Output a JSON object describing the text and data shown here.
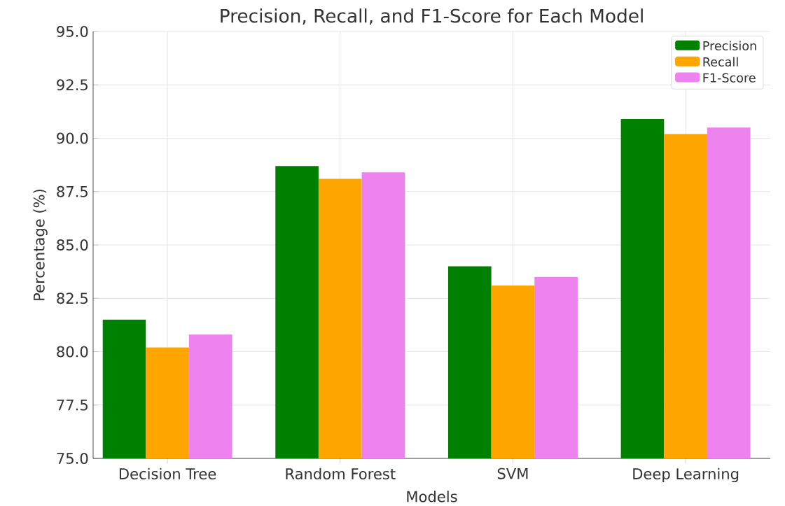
{
  "chart_data": {
    "type": "bar",
    "title": "Precision, Recall, and F1-Score for Each Model",
    "xlabel": "Models",
    "ylabel": "Percentage (%)",
    "categories": [
      "Decision Tree",
      "Random Forest",
      "SVM",
      "Deep Learning"
    ],
    "series": [
      {
        "name": "Precision",
        "color": "#008000",
        "values": [
          81.5,
          88.7,
          84.0,
          90.9
        ]
      },
      {
        "name": "Recall",
        "color": "#ffa500",
        "values": [
          80.2,
          88.1,
          83.1,
          90.2
        ]
      },
      {
        "name": "F1-Score",
        "color": "#ee82ee",
        "values": [
          80.8,
          88.4,
          83.5,
          90.5
        ]
      }
    ],
    "ylim": [
      75,
      95
    ],
    "yticks": [
      {
        "value": 75,
        "label": "75.0"
      },
      {
        "value": 77.5,
        "label": "77.5"
      },
      {
        "value": 80,
        "label": "80.0"
      },
      {
        "value": 82.5,
        "label": "82.5"
      },
      {
        "value": 85,
        "label": "85.0"
      },
      {
        "value": 87.5,
        "label": "87.5"
      },
      {
        "value": 90,
        "label": "90.0"
      },
      {
        "value": 92.5,
        "label": "92.5"
      },
      {
        "value": 95,
        "label": "95.0"
      }
    ],
    "grid": true,
    "legend": "top right"
  }
}
